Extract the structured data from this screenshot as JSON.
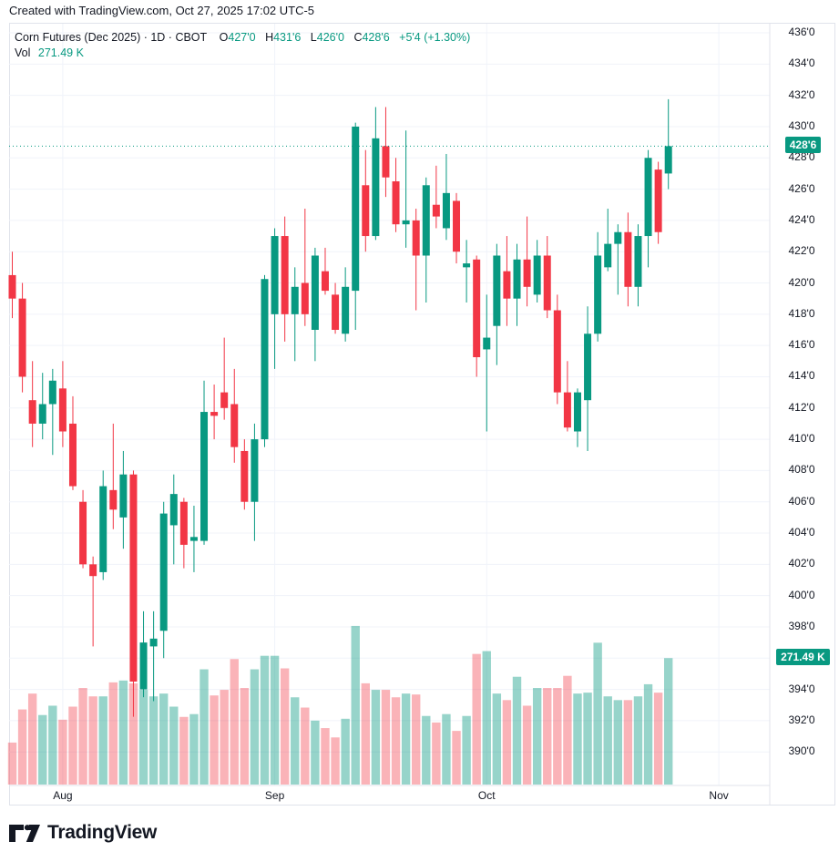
{
  "credit_line": "Created with TradingView.com, Oct 27, 2025 17:02 UTC-5",
  "legend": {
    "title": "Corn Futures (Dec 2025) · 1D · CBOT",
    "o_label": "O",
    "open": "427'0",
    "h_label": "H",
    "high": "431'6",
    "l_label": "L",
    "low": "426'0",
    "c_label": "C",
    "close": "428'6",
    "change": "+5'4 (+1.30%)",
    "vol_label": "Vol",
    "vol_value": "271.49 K"
  },
  "price_axis": {
    "ticks": [
      {
        "label": "436'0",
        "price": 436
      },
      {
        "label": "434'0",
        "price": 434
      },
      {
        "label": "432'0",
        "price": 432
      },
      {
        "label": "430'0",
        "price": 430
      },
      {
        "label": "428'0",
        "price": 428
      },
      {
        "label": "426'0",
        "price": 426
      },
      {
        "label": "424'0",
        "price": 424
      },
      {
        "label": "422'0",
        "price": 422
      },
      {
        "label": "420'0",
        "price": 420
      },
      {
        "label": "418'0",
        "price": 418
      },
      {
        "label": "416'0",
        "price": 416
      },
      {
        "label": "414'0",
        "price": 414
      },
      {
        "label": "412'0",
        "price": 412
      },
      {
        "label": "410'0",
        "price": 410
      },
      {
        "label": "408'0",
        "price": 408
      },
      {
        "label": "406'0",
        "price": 406
      },
      {
        "label": "404'0",
        "price": 404
      },
      {
        "label": "402'0",
        "price": 402
      },
      {
        "label": "400'0",
        "price": 400
      },
      {
        "label": "398'0",
        "price": 398
      },
      {
        "label": "396'0",
        "price": 396
      },
      {
        "label": "394'0",
        "price": 394
      },
      {
        "label": "392'0",
        "price": 392
      },
      {
        "label": "390'0",
        "price": 390
      }
    ],
    "last_price_badge": "428'6",
    "last_price_value": 428.75,
    "volume_badge": "271.49 K",
    "volume_badge_value_k": 271.49
  },
  "time_axis": {
    "ticks": [
      {
        "label": "Aug",
        "index": 5
      },
      {
        "label": "Sep",
        "index": 26
      },
      {
        "label": "Oct",
        "index": 47
      },
      {
        "label": "Nov",
        "index": 70
      }
    ]
  },
  "colors": {
    "up": "#089981",
    "down": "#F23645",
    "up_volume": "rgba(8,153,129,0.42)",
    "down_volume": "rgba(242,54,69,0.38)",
    "grid": "#f0f3fa",
    "border": "#e0e3eb",
    "text": "#131722",
    "badge_bg": "#089981",
    "dotted_price_line": "#089981"
  },
  "logo": {
    "text": "TradingView"
  },
  "chart_data": {
    "type": "candlestick",
    "title": "Corn Futures (Dec 2025)",
    "interval": "1D",
    "exchange": "CBOT",
    "price_format": "cents with eighths: X'Y = X + Y/8",
    "y_axis_range": [
      389.0,
      436.6
    ],
    "volume_unit": "K contracts",
    "last_close": 428.75,
    "last_change": "+5'4 (+1.30%)",
    "last_volume_k": 271.49,
    "ohlcv_note": "each row = [open, high, low, close, volume_k]; 66 daily bars, late Jul - Oct 27 2025",
    "candles": [
      [
        420.5,
        422.0,
        417.75,
        419.0,
        90
      ],
      [
        419.0,
        420.0,
        413.0,
        414.0,
        161
      ],
      [
        412.5,
        415.0,
        409.5,
        411.0,
        195
      ],
      [
        411.0,
        414.25,
        410.0,
        412.25,
        149
      ],
      [
        412.25,
        414.5,
        409.0,
        413.75,
        169
      ],
      [
        413.25,
        415.0,
        409.5,
        410.5,
        139
      ],
      [
        411.0,
        412.75,
        406.75,
        407.0,
        167
      ],
      [
        406.0,
        406.75,
        401.75,
        402.0,
        207
      ],
      [
        402.0,
        402.5,
        396.75,
        401.25,
        189
      ],
      [
        401.5,
        408.0,
        401.0,
        407.0,
        189
      ],
      [
        406.75,
        411.0,
        404.25,
        405.5,
        219
      ],
      [
        405.0,
        409.25,
        403.0,
        407.75,
        223
      ],
      [
        407.75,
        408.0,
        392.25,
        394.5,
        217
      ],
      [
        394.0,
        399.0,
        393.5,
        397.0,
        203
      ],
      [
        396.75,
        399.0,
        393.25,
        397.25,
        189
      ],
      [
        397.75,
        406.0,
        396.0,
        405.25,
        195
      ],
      [
        404.5,
        407.75,
        402.0,
        406.5,
        167
      ],
      [
        406.0,
        406.25,
        401.75,
        403.25,
        145
      ],
      [
        403.5,
        405.75,
        401.5,
        403.75,
        151
      ],
      [
        403.5,
        413.75,
        403.25,
        411.75,
        247
      ],
      [
        411.75,
        413.5,
        410.0,
        411.5,
        191
      ],
      [
        413.0,
        416.5,
        411.25,
        412.0,
        203
      ],
      [
        412.25,
        414.5,
        408.5,
        409.5,
        269
      ],
      [
        409.25,
        410.0,
        405.5,
        406.0,
        207
      ],
      [
        406.0,
        411.0,
        403.5,
        410.0,
        247
      ],
      [
        410.0,
        420.5,
        409.5,
        420.25,
        276
      ],
      [
        418.0,
        423.5,
        414.5,
        423.0,
        276
      ],
      [
        423.0,
        424.25,
        416.25,
        418.0,
        249
      ],
      [
        418.0,
        421.0,
        415.0,
        419.75,
        187
      ],
      [
        420.0,
        424.75,
        417.25,
        418.0,
        165
      ],
      [
        417.0,
        422.25,
        415.0,
        421.75,
        137
      ],
      [
        420.75,
        422.25,
        419.25,
        419.5,
        121
      ],
      [
        419.25,
        420.0,
        416.75,
        417.0,
        101
      ],
      [
        416.75,
        421.0,
        416.25,
        419.75,
        141
      ],
      [
        419.5,
        430.25,
        417.0,
        430.0,
        340
      ],
      [
        426.25,
        428.5,
        422.0,
        423.0,
        217
      ],
      [
        423.0,
        431.25,
        422.75,
        429.25,
        203
      ],
      [
        428.75,
        431.25,
        425.5,
        426.75,
        203
      ],
      [
        426.5,
        428.0,
        423.25,
        423.75,
        187
      ],
      [
        423.75,
        429.75,
        422.25,
        424.0,
        195
      ],
      [
        424.0,
        424.75,
        418.25,
        421.75,
        193
      ],
      [
        421.75,
        426.75,
        418.75,
        426.25,
        147
      ],
      [
        425.0,
        427.5,
        423.5,
        424.25,
        133
      ],
      [
        423.5,
        428.25,
        422.75,
        425.75,
        151
      ],
      [
        425.25,
        425.75,
        421.25,
        422.0,
        115
      ],
      [
        421.0,
        422.75,
        418.75,
        421.25,
        147
      ],
      [
        421.5,
        421.75,
        414.0,
        415.25,
        280
      ],
      [
        415.75,
        419.25,
        410.5,
        416.5,
        286
      ],
      [
        417.25,
        422.5,
        414.75,
        421.75,
        195
      ],
      [
        420.75,
        423.0,
        417.25,
        419.0,
        181
      ],
      [
        419.0,
        422.5,
        417.25,
        421.5,
        231
      ],
      [
        421.5,
        424.25,
        418.5,
        419.75,
        169
      ],
      [
        419.25,
        422.75,
        418.75,
        421.75,
        207
      ],
      [
        421.75,
        423.0,
        417.75,
        418.25,
        207
      ],
      [
        418.25,
        419.25,
        412.25,
        413.0,
        207
      ],
      [
        413.0,
        415.0,
        410.5,
        410.75,
        233
      ],
      [
        410.5,
        413.25,
        409.5,
        413.0,
        195
      ],
      [
        412.5,
        418.5,
        409.25,
        416.75,
        197
      ],
      [
        416.75,
        423.25,
        416.25,
        421.75,
        304
      ],
      [
        421.0,
        424.75,
        420.75,
        422.5,
        189
      ],
      [
        422.5,
        423.75,
        419.25,
        423.25,
        181
      ],
      [
        423.25,
        424.5,
        418.5,
        419.75,
        181
      ],
      [
        419.75,
        423.75,
        418.5,
        423.0,
        189
      ],
      [
        423.0,
        428.5,
        421.0,
        428.0,
        215
      ],
      [
        427.25,
        427.75,
        422.5,
        423.25,
        197
      ],
      [
        427.0,
        431.75,
        426.0,
        428.75,
        271
      ]
    ]
  }
}
